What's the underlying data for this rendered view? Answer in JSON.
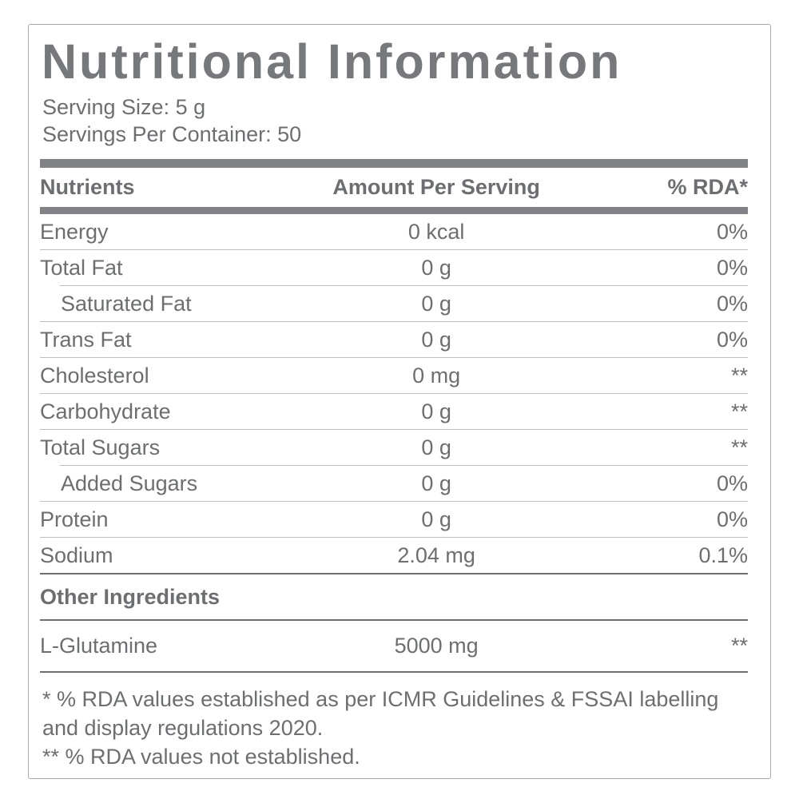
{
  "label": {
    "title": "Nutritional Information",
    "serving_size": "Serving Size: 5 g",
    "servings_per_container": "Servings Per Container: 50",
    "columns": {
      "nutrient": "Nutrients",
      "amount": "Amount Per Serving",
      "rda": "% RDA*"
    },
    "rows": [
      {
        "name": "Energy",
        "amount": "0 kcal",
        "rda": "0%"
      },
      {
        "name": "Total Fat",
        "amount": "0 g",
        "rda": "0%"
      },
      {
        "name": "Saturated Fat",
        "amount": "0 g",
        "rda": "0%"
      },
      {
        "name": "Trans Fat",
        "amount": "0 g",
        "rda": "0%"
      },
      {
        "name": "Cholesterol",
        "amount": "0 mg",
        "rda": "**"
      },
      {
        "name": "Carbohydrate",
        "amount": "0 g",
        "rda": "**"
      },
      {
        "name": "Total Sugars",
        "amount": "0 g",
        "rda": "**"
      },
      {
        "name": "Added Sugars",
        "amount": "0 g",
        "rda": "0%"
      },
      {
        "name": "Protein",
        "amount": "0 g",
        "rda": "0%"
      },
      {
        "name": "Sodium",
        "amount": "2.04 mg",
        "rda": "0.1%"
      }
    ],
    "other_ingredients": {
      "heading": "Other Ingredients",
      "rows": [
        {
          "name": "L-Glutamine",
          "amount": "5000 mg",
          "rda": "**"
        }
      ]
    },
    "footnotes": [
      "* % RDA values established as per ICMR Guidelines & FSSAI labelling and display regulations 2020.",
      "** % RDA values not established."
    ]
  },
  "colors": {
    "text": "#6d6e71",
    "title": "#77787b",
    "header_bar": "#808285",
    "thin_line": "#bcbec0",
    "dark_line": "#6d6e71",
    "border": "#a7a9ac",
    "background": "#ffffff"
  }
}
